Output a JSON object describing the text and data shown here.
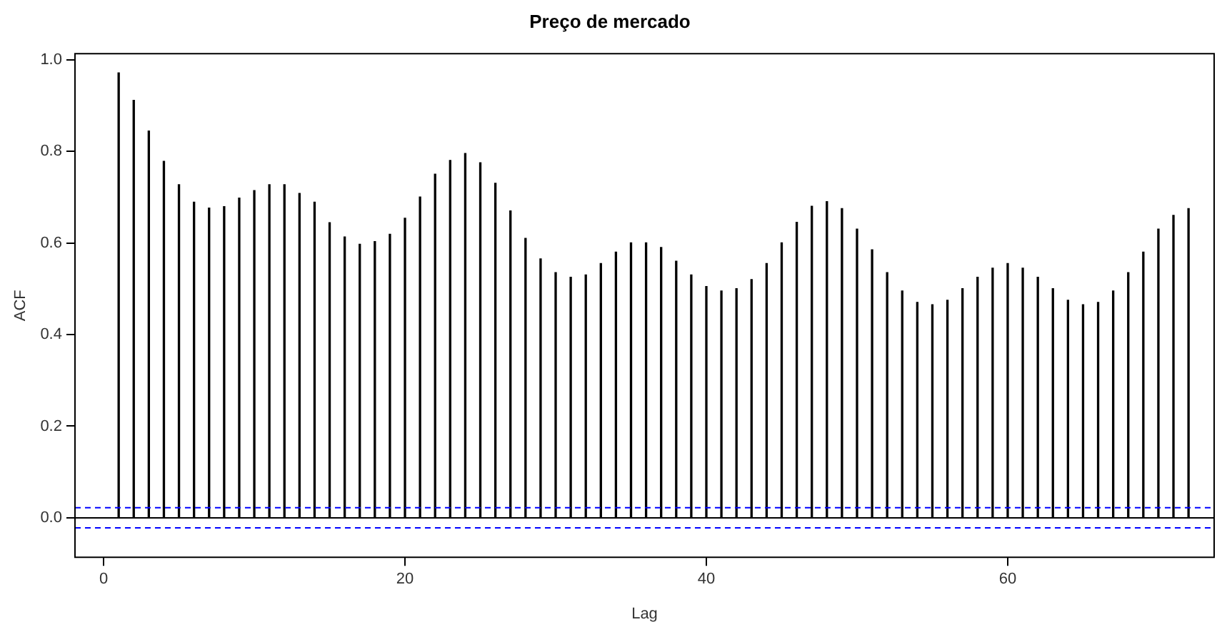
{
  "chart_data": {
    "type": "bar",
    "title": "Preço de mercado",
    "xlabel": "Lag",
    "ylabel": "ACF",
    "color": "#000000",
    "x": [
      1,
      2,
      3,
      4,
      5,
      6,
      7,
      8,
      9,
      10,
      11,
      12,
      13,
      14,
      15,
      16,
      17,
      18,
      19,
      20,
      21,
      22,
      23,
      24,
      25,
      26,
      27,
      28,
      29,
      30,
      31,
      32,
      33,
      34,
      35,
      36,
      37,
      38,
      39,
      40,
      41,
      42,
      43,
      44,
      45,
      46,
      47,
      48,
      49,
      50,
      51,
      52,
      53,
      54,
      55,
      56,
      57,
      58,
      59,
      60,
      61,
      62,
      63,
      64,
      65,
      66,
      67,
      68,
      69,
      70,
      71,
      72
    ],
    "values": [
      0.971,
      0.911,
      0.844,
      0.778,
      0.727,
      0.689,
      0.676,
      0.679,
      0.698,
      0.714,
      0.727,
      0.727,
      0.708,
      0.689,
      0.644,
      0.613,
      0.597,
      0.603,
      0.619,
      0.654,
      0.7,
      0.75,
      0.78,
      0.795,
      0.775,
      0.73,
      0.67,
      0.61,
      0.565,
      0.535,
      0.525,
      0.53,
      0.555,
      0.58,
      0.6,
      0.6,
      0.59,
      0.56,
      0.53,
      0.505,
      0.495,
      0.5,
      0.52,
      0.555,
      0.6,
      0.645,
      0.68,
      0.69,
      0.675,
      0.63,
      0.585,
      0.535,
      0.495,
      0.47,
      0.465,
      0.475,
      0.5,
      0.525,
      0.545,
      0.555,
      0.545,
      0.525,
      0.5,
      0.475,
      0.465,
      0.47,
      0.495,
      0.535,
      0.58,
      0.63,
      0.66,
      0.675
    ],
    "xlim": [
      -1.9,
      73.7
    ],
    "xticks": [
      0,
      20,
      40,
      60
    ],
    "ylim": [
      -0.086,
      1.013
    ],
    "yticks": [
      {
        "value": 0,
        "label": "0.0"
      },
      {
        "value": 0.2,
        "label": "0.2"
      },
      {
        "value": 0.4,
        "label": "0.4"
      },
      {
        "value": 0.6,
        "label": "0.6"
      },
      {
        "value": 0.8,
        "label": "0.8"
      },
      {
        "value": 1,
        "label": "1.0"
      }
    ],
    "ref_lines": [
      {
        "axis": "y",
        "value": 0,
        "color": "#000000",
        "line_style": "solid"
      },
      {
        "axis": "y",
        "value": 0.022,
        "color": "#0000ff",
        "line_style": "dashed"
      },
      {
        "axis": "y",
        "value": -0.022,
        "color": "#0000ff",
        "line_style": "dashed"
      }
    ],
    "grid": false,
    "legend": false
  }
}
